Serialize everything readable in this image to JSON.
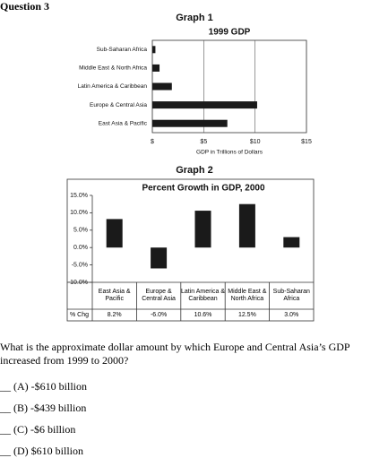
{
  "question": "Question 3",
  "chart_data": [
    {
      "type": "hbar",
      "heading": "Graph 1",
      "title": "1999 GDP",
      "categories": [
        "Sub-Saharan Africa",
        "Middle East & North Africa",
        "Latin America & Caribbean",
        "Europe & Central Asia",
        "East Asia & Pacific"
      ],
      "values": [
        0.3,
        0.7,
        1.9,
        10.2,
        7.3
      ],
      "color": "#1a1a1a",
      "xlim": [
        0,
        15
      ],
      "xticks": [
        {
          "value": 0,
          "label": "$"
        },
        {
          "value": 5,
          "label": "$5"
        },
        {
          "value": 10,
          "label": "$10"
        },
        {
          "value": 15,
          "label": "$15"
        }
      ],
      "xlabel": "GDP in Trillions of Dollars",
      "grid": true
    },
    {
      "type": "bar",
      "heading": "Graph 2",
      "title": "Percent Growth in GDP, 2000",
      "categories": [
        "East Asia & Pacific",
        "Europe & Central Asia",
        "Latin America & Caribbean",
        "Middle East & North Africa",
        "Sub-Saharan Africa"
      ],
      "values": [
        8.2,
        -6.0,
        10.6,
        12.5,
        3.0
      ],
      "value_labels": [
        "8.2%",
        "-6.0%",
        "10.6%",
        "12.5%",
        "3.0%"
      ],
      "row_label": "% Chg",
      "color": "#1a1a1a",
      "ylim": [
        -10,
        15
      ],
      "yticks": [
        {
          "value": 15,
          "label": "15.0%"
        },
        {
          "value": 10,
          "label": "10.0%"
        },
        {
          "value": 5,
          "label": "5.0%"
        },
        {
          "value": 0,
          "label": "0.0%"
        },
        {
          "value": -5,
          "label": "-5.0%"
        },
        {
          "value": -10,
          "label": "-10.0%"
        }
      ]
    }
  ],
  "prompt": "What is the approximate dollar amount by which Europe and Central Asia’s GDP increased from 1999 to 2000?",
  "options": [
    "__ (A) -$610 billion",
    "__ (B) -$439 billion",
    "__ (C) -$6 billion",
    "__ (D) $610 billion"
  ]
}
